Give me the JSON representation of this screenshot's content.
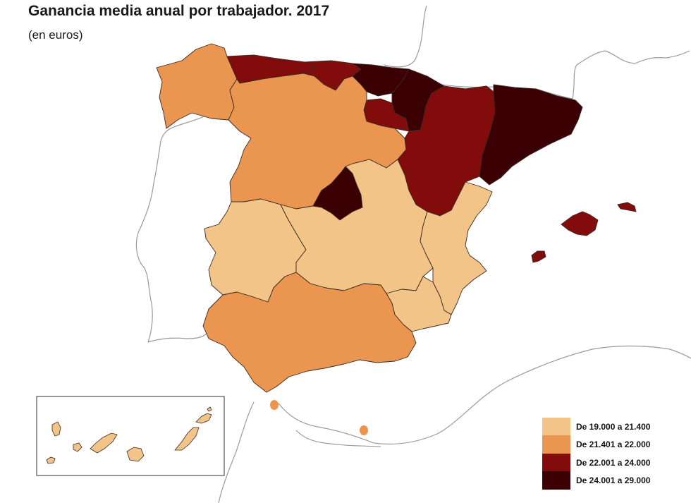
{
  "title": "Ganancia media anual por trabajador. 2017",
  "subtitle": "(en euros)",
  "colors": {
    "c1": "#f3c487",
    "c2": "#eb9650",
    "c3": "#820b0c",
    "c4": "#3a0003",
    "land_outline": "#9a9a9a"
  },
  "legend": [
    {
      "label": "De 19.000 a 21.400",
      "color": "#f3c487"
    },
    {
      "label": "De 21.401 a 22.000",
      "color": "#eb9650"
    },
    {
      "label": "De 22.001 a 24.000",
      "color": "#820b0c"
    },
    {
      "label": "De 24.001 a 29.000",
      "color": "#3a0003"
    }
  ]
}
